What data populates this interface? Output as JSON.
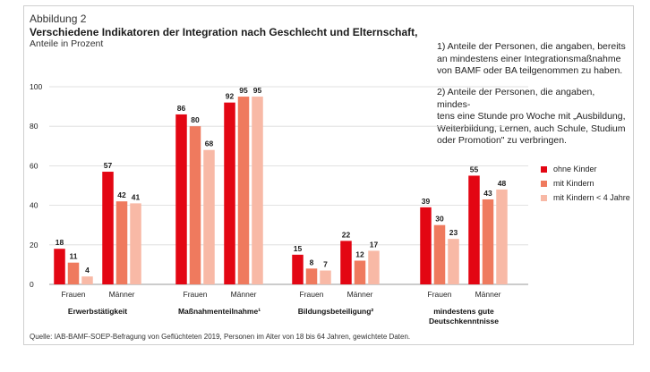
{
  "figure_label": "Abbildung 2",
  "title": "Verschiedene Indikatoren der Integration nach Geschlecht und Elternschaft,",
  "subtitle": "Anteile in Prozent",
  "notes": [
    [
      "1) Anteile der Personen, die angaben, bereits",
      "an mindestens einer Integrationsmaßnahme",
      "von BAMF oder BA teilgenommen zu haben."
    ],
    [
      "2) Anteile der Personen, die angaben, mindes-",
      "tens eine Stunde pro Woche mit „Ausbildung,",
      "Weiterbildung, Lernen, auch Schule, Studium",
      "oder Promotion\" zu verbringen."
    ]
  ],
  "source": "Quelle: IAB-BAMF-SOEP-Befragung von Geflüchteten 2019, Personen im Alter von 18 bis 64 Jahren, gewichtete Daten.",
  "colors": {
    "ohne_kinder": "#e30613",
    "mit_kindern": "#ef7a5e",
    "mit_kindern_u4": "#f8b9a6"
  },
  "chart_data": {
    "type": "bar",
    "ylim": [
      0,
      100
    ],
    "yticks": [
      0,
      20,
      40,
      60,
      80,
      100
    ],
    "grid": true,
    "legend_position": "right",
    "series_names": [
      "ohne Kinder",
      "mit Kindern",
      "mit Kindern < 4 Jahre"
    ],
    "groups": [
      {
        "label": "Erwerbstätigkeit",
        "label_lines": [
          "Erwerbstätigkeit"
        ],
        "subgroups": [
          {
            "label": "Frauen",
            "values": [
              18,
              11,
              4
            ]
          },
          {
            "label": "Männer",
            "values": [
              57,
              42,
              41
            ]
          }
        ]
      },
      {
        "label": "Maßnahmenteilnahme¹",
        "label_lines": [
          "Maßnahmenteilnahme¹"
        ],
        "subgroups": [
          {
            "label": "Frauen",
            "values": [
              86,
              80,
              68
            ]
          },
          {
            "label": "Männer",
            "values": [
              92,
              95,
              95
            ]
          }
        ]
      },
      {
        "label": "Bildungsbeteiligung²",
        "label_lines": [
          "Bildungsbeteiligung²"
        ],
        "subgroups": [
          {
            "label": "Frauen",
            "values": [
              15,
              8,
              7
            ]
          },
          {
            "label": "Männer",
            "values": [
              22,
              12,
              17
            ]
          }
        ]
      },
      {
        "label": "mindestens gute Deutschkenntnisse",
        "label_lines": [
          "mindestens gute",
          "Deutschkenntnisse"
        ],
        "subgroups": [
          {
            "label": "Frauen",
            "values": [
              39,
              30,
              23
            ]
          },
          {
            "label": "Männer",
            "values": [
              55,
              43,
              48
            ]
          }
        ]
      }
    ]
  }
}
